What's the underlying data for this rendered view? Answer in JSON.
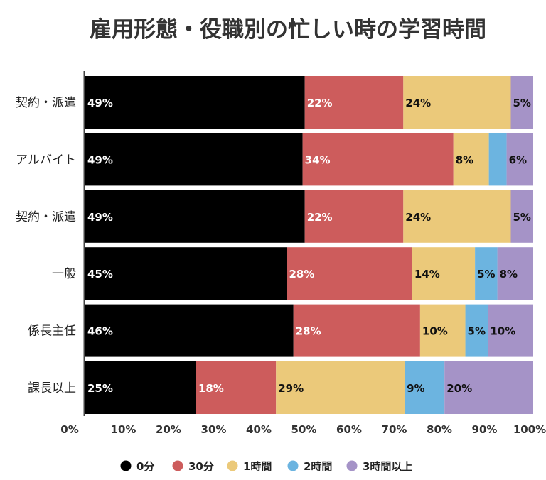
{
  "chart_data": {
    "type": "bar",
    "orientation": "horizontal",
    "stacked": true,
    "title": "雇用形態・役職別の忙しい時の学習時間",
    "categories": [
      "契約・派遣",
      "アルバイト",
      "契約・派遣",
      "一般",
      "係長主任",
      "課長以上"
    ],
    "x_ticks": [
      "0%",
      "10%",
      "20%",
      "30%",
      "40%",
      "50%",
      "60%",
      "70%",
      "80%",
      "90%",
      "100%"
    ],
    "xlim": [
      0,
      100
    ],
    "grid": false,
    "legend_position": "bottom",
    "series": [
      {
        "name": "0分",
        "color": "#000000",
        "label_color": "#ffffff",
        "values": [
          49,
          49,
          49,
          45,
          46,
          25
        ],
        "labels": [
          "49%",
          "49%",
          "49%",
          "45%",
          "46%",
          "25%"
        ]
      },
      {
        "name": "30分",
        "color": "#cd5c5c",
        "label_color": "#ffffff",
        "values": [
          22,
          34,
          22,
          28,
          28,
          18
        ],
        "labels": [
          "22%",
          "34%",
          "22%",
          "28%",
          "28%",
          "18%"
        ]
      },
      {
        "name": "1時間",
        "color": "#ebc97a",
        "label_color": "#111111",
        "values": [
          24,
          8,
          24,
          14,
          10,
          29
        ],
        "labels": [
          "24%",
          "8%",
          "24%",
          "14%",
          "10%",
          "29%"
        ]
      },
      {
        "name": "2時間",
        "color": "#6cb4e0",
        "label_color": "#111111",
        "values": [
          0,
          4,
          0,
          5,
          5,
          9
        ],
        "labels": [
          "",
          "",
          "",
          "5%",
          "5%",
          "9%"
        ]
      },
      {
        "name": "3時間以上",
        "color": "#a593c7",
        "label_color": "#111111",
        "values": [
          5,
          6,
          5,
          8,
          10,
          20
        ],
        "labels": [
          "5%",
          "6%",
          "5%",
          "8%",
          "10%",
          "20%"
        ]
      }
    ]
  }
}
